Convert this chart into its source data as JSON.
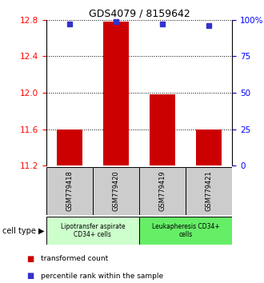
{
  "title": "GDS4079 / 8159642",
  "samples": [
    "GSM779418",
    "GSM779420",
    "GSM779419",
    "GSM779421"
  ],
  "transformed_counts": [
    11.6,
    12.78,
    11.98,
    11.6
  ],
  "percentile_ranks": [
    97,
    99,
    97,
    96
  ],
  "ylim": [
    11.2,
    12.8
  ],
  "yticks_left": [
    11.2,
    11.6,
    12.0,
    12.4,
    12.8
  ],
  "yticks_right": [
    0,
    25,
    50,
    75,
    100
  ],
  "bar_color": "#cc0000",
  "dot_color": "#3333cc",
  "grid_color": "#000000",
  "group1_label": "Lipotransfer aspirate\nCD34+ cells",
  "group2_label": "Leukapheresis CD34+\ncells",
  "group1_indices": [
    0,
    1
  ],
  "group2_indices": [
    2,
    3
  ],
  "group1_color": "#ccffcc",
  "group2_color": "#66ee66",
  "sample_box_color": "#cccccc",
  "legend_label_red": "transformed count",
  "legend_label_blue": "percentile rank within the sample",
  "cell_type_label": "cell type"
}
